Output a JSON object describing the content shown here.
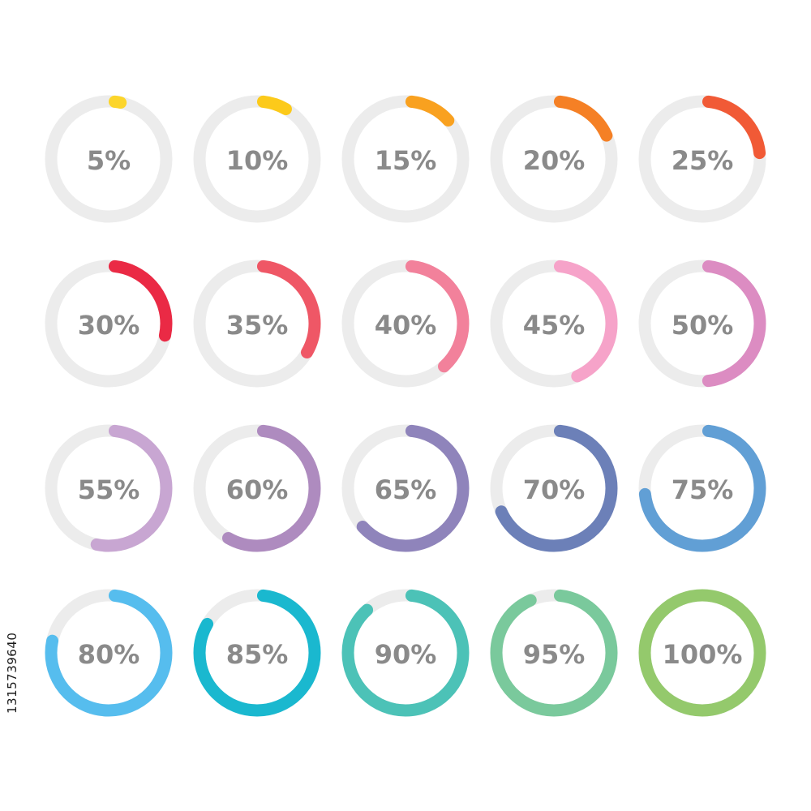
{
  "rings": [
    {
      "label": "5%",
      "value": 5,
      "color": "#fcd52b"
    },
    {
      "label": "10%",
      "value": 10,
      "color": "#fcca1a"
    },
    {
      "label": "15%",
      "value": 15,
      "color": "#f9a11f"
    },
    {
      "label": "20%",
      "value": 20,
      "color": "#f58025"
    },
    {
      "label": "25%",
      "value": 25,
      "color": "#f15a36"
    },
    {
      "label": "30%",
      "value": 30,
      "color": "#ea2a45"
    },
    {
      "label": "35%",
      "value": 35,
      "color": "#ef5766"
    },
    {
      "label": "40%",
      "value": 40,
      "color": "#f2819b"
    },
    {
      "label": "45%",
      "value": 45,
      "color": "#f6a3c9"
    },
    {
      "label": "50%",
      "value": 50,
      "color": "#dc8cc2"
    },
    {
      "label": "55%",
      "value": 55,
      "color": "#c8a6d2"
    },
    {
      "label": "60%",
      "value": 60,
      "color": "#ae8bbf"
    },
    {
      "label": "65%",
      "value": 65,
      "color": "#8f84bb"
    },
    {
      "label": "70%",
      "value": 70,
      "color": "#6c80b8"
    },
    {
      "label": "75%",
      "value": 75,
      "color": "#619fd5"
    },
    {
      "label": "80%",
      "value": 80,
      "color": "#56bdee"
    },
    {
      "label": "85%",
      "value": 85,
      "color": "#1ab8cf"
    },
    {
      "label": "90%",
      "value": 90,
      "color": "#4cc2b7"
    },
    {
      "label": "95%",
      "value": 95,
      "color": "#7ac99c"
    },
    {
      "label": "100%",
      "value": 100,
      "color": "#94c96c"
    }
  ],
  "track_color": "#ececec",
  "label_color": "#8a8a8a",
  "stock_id": "1315739640"
}
